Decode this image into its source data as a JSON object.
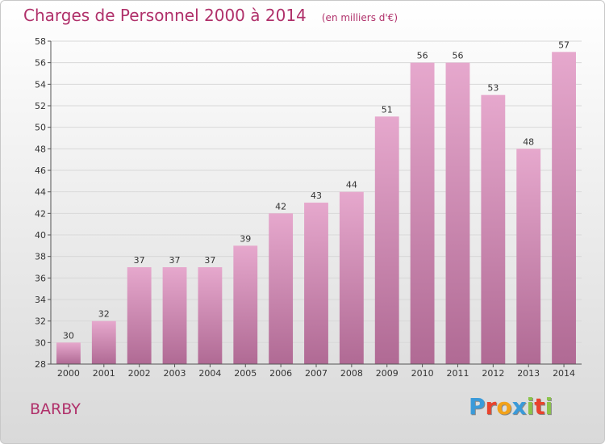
{
  "chart_data": {
    "type": "bar",
    "title": "Charges de Personnel 2000 à 2014",
    "subtitle": "(en milliers d'€)",
    "categories": [
      "2000",
      "2001",
      "2002",
      "2003",
      "2004",
      "2005",
      "2006",
      "2007",
      "2008",
      "2009",
      "2010",
      "2011",
      "2012",
      "2013",
      "2014"
    ],
    "values": [
      30,
      32,
      37,
      37,
      37,
      39,
      42,
      43,
      44,
      51,
      56,
      56,
      53,
      48,
      57
    ],
    "ylim": [
      28,
      58
    ],
    "yticks": [
      28,
      30,
      32,
      34,
      36,
      38,
      40,
      42,
      44,
      46,
      48,
      50,
      52,
      54,
      56,
      58
    ],
    "xlabel": "",
    "ylabel": "",
    "grid": true,
    "bar_color_top": "#e6a8cd",
    "bar_color_bottom": "#b06a94"
  },
  "commune": "BARBY",
  "logo": {
    "letters": [
      "P",
      "r",
      "o",
      "x",
      "i",
      "t",
      "i"
    ],
    "colors": [
      "#3a9ad9",
      "#e8432d",
      "#f2a21a",
      "#3a9ad9",
      "#8bc34a",
      "#e8432d",
      "#8bc34a"
    ]
  }
}
